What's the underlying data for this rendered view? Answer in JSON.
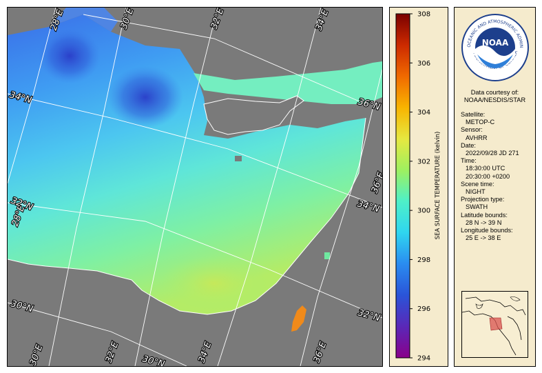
{
  "map": {
    "grid_labels": {
      "lon_top": [
        "28°E",
        "30°E",
        "32°E",
        "34°E"
      ],
      "lon_right_36": "36°E",
      "lon_bottom": [
        "30°E",
        "32°E",
        "34°E",
        "36°E"
      ],
      "lon_left_28": "28°E",
      "lat_34_left": "34°N",
      "lat_36_right": "36°N",
      "lat_34_right": "34°N",
      "lat_32_left": "32°N",
      "lat_30_left": "30°N",
      "lat_32_right": "32°N",
      "lat_30_bottom": "30°N"
    },
    "colors": {
      "land_background": "#7a7a7a",
      "graticule": "#ffffff",
      "coastline": "#ffffff"
    }
  },
  "colorbar": {
    "title": "SEA SURFACE TEMPERATURE (kelvin)",
    "min": 294,
    "max": 308,
    "ticks": [
      "308",
      "306",
      "304",
      "302",
      "300",
      "298",
      "296",
      "294"
    ],
    "tick_values": [
      308,
      306,
      304,
      302,
      300,
      298,
      296,
      294
    ],
    "gradient_stops": [
      "#7a0000",
      "#cc2a00",
      "#f06a00",
      "#f8b400",
      "#e6e840",
      "#9ef060",
      "#4ef0c8",
      "#2fd6f0",
      "#2a8cf0",
      "#2a54d8",
      "#5a28b8",
      "#8a008a"
    ]
  },
  "info": {
    "logo_text": "NOAA",
    "logo_ring_top": "NATIONAL OCEANIC AND ATMOSPHERIC ADMINISTRATION",
    "logo_ring_bottom": "U.S. DEPARTMENT OF COMMERCE",
    "credit_line1": "Data courtesy of:",
    "credit_line2": "NOAA/NESDIS/STAR",
    "satellite_label": "Satellite:",
    "satellite_value": "METOP-C",
    "sensor_label": "Sensor:",
    "sensor_value": "AVHRR",
    "date_label": "Date:",
    "date_value": "2022/09/28 JD 271",
    "time_label": "Time:",
    "time_value1": "18:30:00 UTC",
    "time_value2": "20:30:00 +0200",
    "scene_label": "Scene time:",
    "scene_value": "NIGHT",
    "projection_label": "Projection type:",
    "projection_value": "SWATH",
    "lat_bounds_label": "Latitude bounds:",
    "lat_bounds_value": "28 N -> 39 N",
    "lon_bounds_label": "Longitude bounds:",
    "lon_bounds_value": "25 E -> 38 E"
  }
}
